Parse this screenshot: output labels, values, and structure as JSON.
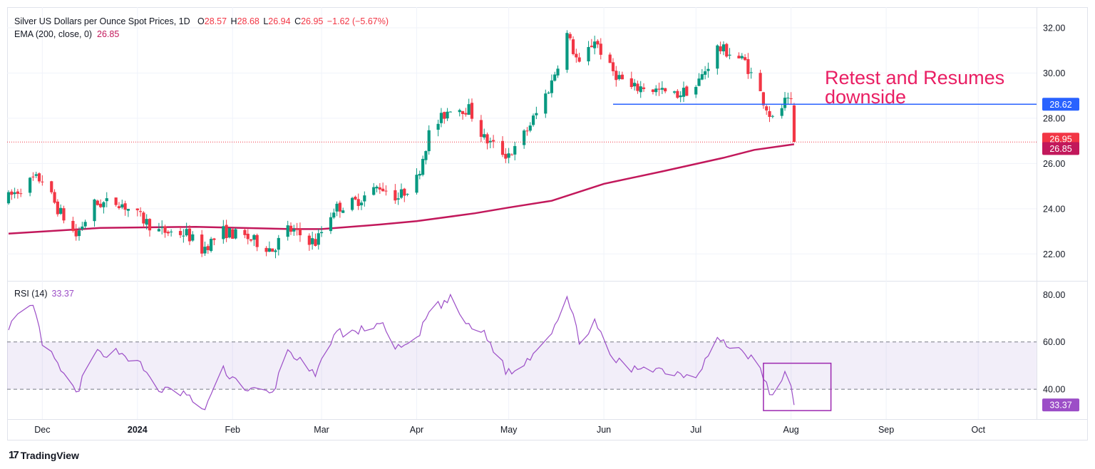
{
  "legend": {
    "title": "Silver US Dollars per Ounce Spot Prices, 1D",
    "open_label": "O",
    "open": "28.57",
    "high_label": "H",
    "high": "28.68",
    "low_label": "L",
    "low": "26.94",
    "close_label": "C",
    "close": "26.95",
    "change": "−1.62 (−5.67%)",
    "ema_label": "EMA (200, close, 0)",
    "ema_value": "26.85",
    "rsi_label": "RSI (14)",
    "rsi_value": "33.37"
  },
  "annotation": {
    "text": "Retest and Resumes\ndownside"
  },
  "branding": {
    "logo_text": "17",
    "name": "TradingView"
  },
  "colors": {
    "up": "#089981",
    "down": "#f23645",
    "ema": "#c2185b",
    "resistance": "#2962ff",
    "rsi": "#9c4ec7",
    "annotation": "#e91e63",
    "box": "#9c27b0"
  },
  "chart_data": [
    {
      "type": "candlestick",
      "title": "Silver US Dollars per Ounce Spot Prices, 1D",
      "ylim": [
        21.0,
        32.6
      ],
      "y_ticks": [
        "32.00",
        "30.00",
        "28.00",
        "26.00",
        "24.00",
        "22.00"
      ],
      "x_labels": [
        "Dec",
        "2024",
        "Feb",
        "Mar",
        "Apr",
        "May",
        "Jun",
        "Jul",
        "Aug",
        "Sep",
        "Oct"
      ],
      "x_label_dates": [
        "2023-12-01",
        "2024-01-01",
        "2024-02-01",
        "2024-03-01",
        "2024-04-01",
        "2024-05-01",
        "2024-06-01",
        "2024-07-01",
        "2024-08-01",
        "2024-09-01",
        "2024-10-01"
      ],
      "x_range": [
        "2023-11-20",
        "2024-10-20"
      ],
      "anchors": [
        [
          "2023-11-20",
          24.5
        ],
        [
          "2023-11-28",
          25.3
        ],
        [
          "2023-12-01",
          25.3
        ],
        [
          "2023-12-06",
          24.0
        ],
        [
          "2023-12-12",
          22.8
        ],
        [
          "2023-12-18",
          24.2
        ],
        [
          "2023-12-26",
          24.3
        ],
        [
          "2024-01-02",
          23.6
        ],
        [
          "2024-01-08",
          23.0
        ],
        [
          "2024-01-17",
          22.9
        ],
        [
          "2024-01-22",
          22.2
        ],
        [
          "2024-01-29",
          23.0
        ],
        [
          "2024-02-06",
          22.7
        ],
        [
          "2024-02-14",
          22.2
        ],
        [
          "2024-02-19",
          23.1
        ],
        [
          "2024-02-28",
          22.5
        ],
        [
          "2024-03-05",
          24.0
        ],
        [
          "2024-03-12",
          24.3
        ],
        [
          "2024-03-20",
          25.0
        ],
        [
          "2024-03-26",
          24.5
        ],
        [
          "2024-04-01",
          25.3
        ],
        [
          "2024-04-05",
          27.3
        ],
        [
          "2024-04-12",
          28.5
        ],
        [
          "2024-04-18",
          28.4
        ],
        [
          "2024-04-23",
          27.1
        ],
        [
          "2024-04-30",
          26.4
        ],
        [
          "2024-05-03",
          26.6
        ],
        [
          "2024-05-10",
          28.2
        ],
        [
          "2024-05-15",
          29.6
        ],
        [
          "2024-05-20",
          31.7
        ],
        [
          "2024-05-24",
          30.3
        ],
        [
          "2024-05-29",
          31.5
        ],
        [
          "2024-06-03",
          30.2
        ],
        [
          "2024-06-10",
          29.3
        ],
        [
          "2024-06-14",
          29.4
        ],
        [
          "2024-06-24",
          29.0
        ],
        [
          "2024-07-01",
          29.4
        ],
        [
          "2024-07-08",
          31.1
        ],
        [
          "2024-07-12",
          30.9
        ],
        [
          "2024-07-17",
          30.5
        ],
        [
          "2024-07-22",
          29.1
        ],
        [
          "2024-07-26",
          27.9
        ],
        [
          "2024-07-30",
          28.7
        ],
        [
          "2024-08-01",
          28.6
        ],
        [
          "2024-08-02",
          28.57
        ]
      ],
      "last_candle": {
        "date": "2024-08-02",
        "open": 28.57,
        "high": 28.68,
        "low": 26.94,
        "close": 26.95
      },
      "ema": [
        [
          "2023-11-20",
          22.9
        ],
        [
          "2023-12-20",
          23.15
        ],
        [
          "2024-01-20",
          23.2
        ],
        [
          "2024-02-20",
          23.1
        ],
        [
          "2024-03-01",
          23.1
        ],
        [
          "2024-03-20",
          23.3
        ],
        [
          "2024-04-01",
          23.45
        ],
        [
          "2024-04-20",
          23.8
        ],
        [
          "2024-05-01",
          24.05
        ],
        [
          "2024-05-15",
          24.35
        ],
        [
          "2024-06-01",
          25.1
        ],
        [
          "2024-06-20",
          25.65
        ],
        [
          "2024-07-10",
          26.25
        ],
        [
          "2024-07-20",
          26.6
        ],
        [
          "2024-08-02",
          26.85
        ]
      ],
      "resistance_line": {
        "value": 28.62,
        "start": "2024-06-04",
        "label": "28.62"
      },
      "close_marker": {
        "value": 26.95,
        "label": "26.95"
      },
      "ema_marker": {
        "value": 26.85,
        "label": "26.85"
      },
      "grid": true
    },
    {
      "type": "line",
      "title": "RSI (14)",
      "ylim": [
        28,
        84
      ],
      "y_ticks": [
        "80.00",
        "60.00",
        "40.00"
      ],
      "band": [
        40,
        60
      ],
      "anchors": [
        [
          "2023-11-20",
          67
        ],
        [
          "2023-11-28",
          75
        ],
        [
          "2023-12-01",
          60
        ],
        [
          "2023-12-06",
          50
        ],
        [
          "2023-12-12",
          38
        ],
        [
          "2023-12-18",
          55
        ],
        [
          "2023-12-26",
          56
        ],
        [
          "2024-01-02",
          50
        ],
        [
          "2024-01-08",
          40
        ],
        [
          "2024-01-17",
          38
        ],
        [
          "2024-01-22",
          30
        ],
        [
          "2024-01-29",
          48
        ],
        [
          "2024-02-06",
          40
        ],
        [
          "2024-02-14",
          38
        ],
        [
          "2024-02-19",
          57
        ],
        [
          "2024-02-28",
          45
        ],
        [
          "2024-03-05",
          64
        ],
        [
          "2024-03-12",
          64
        ],
        [
          "2024-03-20",
          68
        ],
        [
          "2024-03-26",
          57
        ],
        [
          "2024-04-01",
          60
        ],
        [
          "2024-04-05",
          73
        ],
        [
          "2024-04-12",
          78
        ],
        [
          "2024-04-18",
          66
        ],
        [
          "2024-04-23",
          64
        ],
        [
          "2024-04-30",
          48
        ],
        [
          "2024-05-03",
          47
        ],
        [
          "2024-05-10",
          57
        ],
        [
          "2024-05-15",
          65
        ],
        [
          "2024-05-20",
          79
        ],
        [
          "2024-05-24",
          61
        ],
        [
          "2024-05-29",
          68
        ],
        [
          "2024-06-03",
          54
        ],
        [
          "2024-06-10",
          48
        ],
        [
          "2024-06-14",
          50
        ],
        [
          "2024-06-24",
          47
        ],
        [
          "2024-07-01",
          46
        ],
        [
          "2024-07-08",
          61
        ],
        [
          "2024-07-12",
          58
        ],
        [
          "2024-07-17",
          56
        ],
        [
          "2024-07-22",
          48
        ],
        [
          "2024-07-26",
          36
        ],
        [
          "2024-07-30",
          46
        ],
        [
          "2024-08-01",
          43
        ],
        [
          "2024-08-02",
          33.37
        ]
      ],
      "highlight_box": {
        "start": "2024-07-23",
        "end": "2024-08-14",
        "ymin": 31,
        "ymax": 51
      },
      "last_value_label": "33.37"
    }
  ]
}
